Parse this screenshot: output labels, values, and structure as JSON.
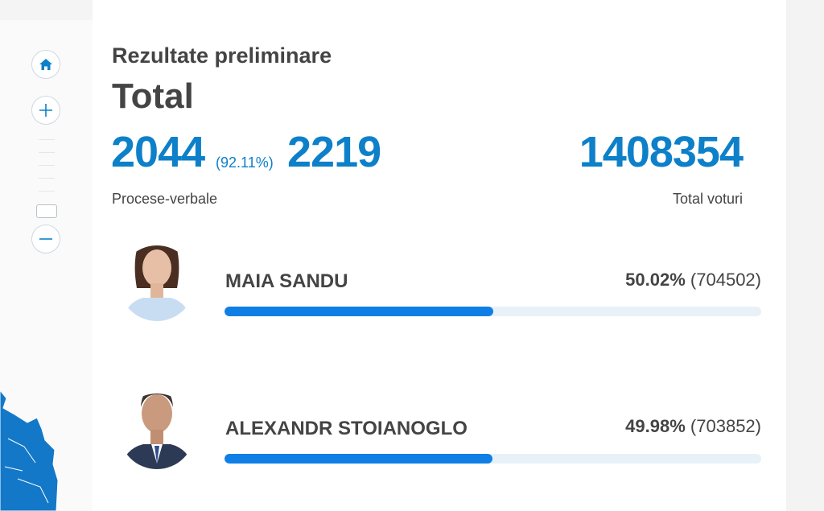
{
  "header": {
    "subtitle": "Rezultate preliminare",
    "title": "Total"
  },
  "stats": {
    "processed": "2044",
    "processed_pct": "(92.11%)",
    "total_reports": "2219",
    "reports_label": "Procese-verbale",
    "total_votes": "1408354",
    "votes_label": "Total voturi"
  },
  "candidates": [
    {
      "name": "MAIA SANDU",
      "percent": "50.02%",
      "votes": "(704502)",
      "share": 0.5002
    },
    {
      "name": "ALEXANDR STOIANOGLO",
      "percent": "49.98%",
      "votes": "(703852)",
      "share": 0.4998
    }
  ],
  "colors": {
    "accent": "#0d80c9",
    "bar": "#0f7fe6",
    "map": "#1478c8"
  },
  "icons": [
    "home-icon",
    "zoom-in-icon",
    "zoom-out-icon"
  ]
}
